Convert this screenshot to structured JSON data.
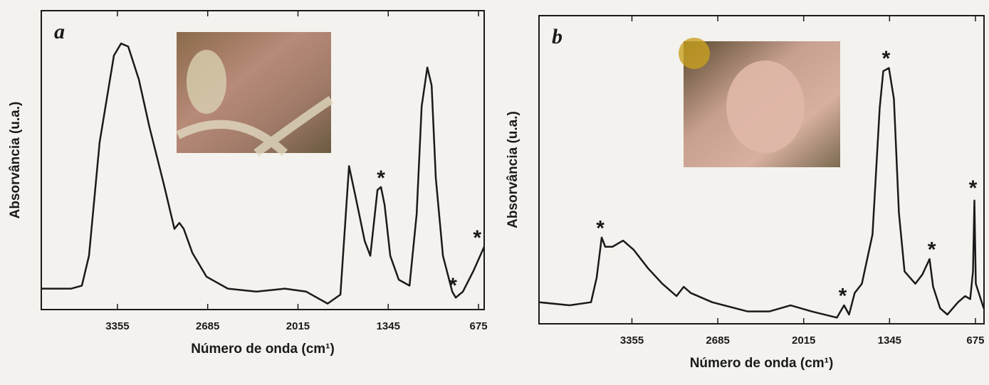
{
  "chart_data": [
    {
      "type": "line",
      "title": "a",
      "xlabel": "Número de onda (cm¹)",
      "ylabel": "Absorvância (u.a.)",
      "xlim": [
        3920,
        633
      ],
      "ylim": [
        0,
        1
      ],
      "xticks": [
        3355,
        2685,
        2015,
        1345,
        675
      ],
      "x": [
        3920,
        3698,
        3619,
        3566,
        3487,
        3381,
        3328,
        3275,
        3196,
        3117,
        3011,
        2932,
        2895,
        2863,
        2799,
        2694,
        2535,
        2324,
        2112,
        1954,
        1795,
        1700,
        1636,
        1584,
        1520,
        1478,
        1425,
        1399,
        1372,
        1330,
        1267,
        1187,
        1134,
        1097,
        1055,
        1023,
        992,
        939,
        870,
        844,
        791,
        712,
        633
      ],
      "series": [
        {
          "color": "#1a1a1a",
          "values": [
            0.07,
            0.07,
            0.08,
            0.18,
            0.56,
            0.85,
            0.89,
            0.88,
            0.77,
            0.61,
            0.42,
            0.27,
            0.29,
            0.27,
            0.19,
            0.11,
            0.07,
            0.06,
            0.07,
            0.06,
            0.02,
            0.05,
            0.48,
            0.37,
            0.23,
            0.18,
            0.4,
            0.41,
            0.35,
            0.18,
            0.1,
            0.08,
            0.32,
            0.68,
            0.81,
            0.75,
            0.44,
            0.18,
            0.06,
            0.04,
            0.06,
            0.13,
            0.21
          ]
        }
      ],
      "annotations": [
        {
          "text": "*",
          "x": 1399,
          "y": 0.45
        },
        {
          "text": "*",
          "x": 865,
          "y": 0.09
        },
        {
          "text": "*",
          "x": 685,
          "y": 0.25
        }
      ]
    },
    {
      "type": "line",
      "title": "b",
      "xlabel": "Número de onda (cm¹)",
      "ylabel": "Absorvância (u.a.)",
      "xlim": [
        4080,
        608
      ],
      "ylim": [
        0,
        1
      ],
      "xticks": [
        3355,
        2685,
        2015,
        1345,
        675
      ],
      "x": [
        4080,
        3841,
        3674,
        3630,
        3591,
        3563,
        3507,
        3424,
        3341,
        3229,
        3118,
        3007,
        2951,
        2896,
        2729,
        2451,
        2284,
        2117,
        1951,
        1756,
        1700,
        1661,
        1617,
        1561,
        1478,
        1422,
        1394,
        1350,
        1311,
        1272,
        1228,
        1144,
        1089,
        1033,
        1005,
        950,
        894,
        811,
        755,
        716,
        694,
        683,
        672,
        610
      ],
      "series": [
        {
          "color": "#1a1a1a",
          "values": [
            0.07,
            0.06,
            0.07,
            0.15,
            0.28,
            0.25,
            0.25,
            0.27,
            0.24,
            0.18,
            0.13,
            0.09,
            0.12,
            0.1,
            0.07,
            0.04,
            0.04,
            0.06,
            0.04,
            0.02,
            0.06,
            0.03,
            0.1,
            0.13,
            0.29,
            0.7,
            0.82,
            0.83,
            0.73,
            0.36,
            0.17,
            0.13,
            0.16,
            0.21,
            0.12,
            0.05,
            0.03,
            0.07,
            0.09,
            0.08,
            0.17,
            0.4,
            0.13,
            0.05
          ]
        }
      ],
      "annotations": [
        {
          "text": "*",
          "x": 3602,
          "y": 0.32
        },
        {
          "text": "*",
          "x": 1711,
          "y": 0.1
        },
        {
          "text": "*",
          "x": 1372,
          "y": 0.87
        },
        {
          "text": "*",
          "x": 1016,
          "y": 0.25
        },
        {
          "text": "*",
          "x": 694,
          "y": 0.45
        }
      ]
    }
  ]
}
